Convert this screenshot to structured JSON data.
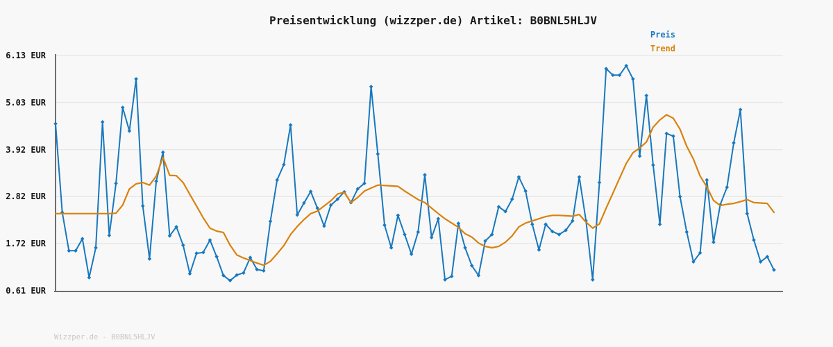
{
  "title": "Preisentwicklung (wizzper.de) Artikel: B0BNL5HLJV",
  "footer": "Wizzper.de - B0BNL5HLJV",
  "legend": {
    "position": "top-right",
    "items": [
      {
        "label": "Preis",
        "color": "#1878be"
      },
      {
        "label": "Trend",
        "color": "#d9820f"
      }
    ]
  },
  "yaxis": {
    "ticks": [
      {
        "value": 6.13,
        "label": "6.13 EUR"
      },
      {
        "value": 5.03,
        "label": "5.03 EUR"
      },
      {
        "value": 3.92,
        "label": "3.92 EUR"
      },
      {
        "value": 2.82,
        "label": "2.82 EUR"
      },
      {
        "value": 1.72,
        "label": "1.72 EUR"
      },
      {
        "value": 0.61,
        "label": "0.61 EUR"
      }
    ]
  },
  "colors": {
    "background": "#f8f8f8",
    "grid": "#e7e7e7",
    "axis": "#6e6e6e",
    "title_text": "#1a1a1a",
    "tick_text": "#141414",
    "watermark_text": "#c8c8c8"
  },
  "chart_data": {
    "type": "line",
    "title": "Preisentwicklung (wizzper.de) Artikel: B0BNL5HLJV",
    "xlabel": "",
    "ylabel": "EUR",
    "ylim": [
      0.61,
      6.13
    ],
    "ytick_labels": [
      "6.13 EUR",
      "5.03 EUR",
      "3.92 EUR",
      "2.82 EUR",
      "1.72 EUR",
      "0.61 EUR"
    ],
    "x_tick_labels_visible": false,
    "grid": "horizontal",
    "legend_position": "top-right",
    "series": [
      {
        "name": "Preis",
        "color": "#1878be",
        "marker": "diamond",
        "values": [
          4.53,
          2.45,
          1.55,
          1.55,
          1.83,
          0.92,
          1.62,
          4.57,
          1.91,
          3.13,
          4.91,
          4.36,
          5.58,
          2.6,
          1.36,
          3.18,
          3.86,
          1.9,
          2.11,
          1.68,
          1.01,
          1.49,
          1.51,
          1.8,
          1.41,
          0.97,
          0.85,
          0.98,
          1.03,
          1.39,
          1.11,
          1.08,
          2.24,
          3.21,
          3.57,
          4.5,
          2.39,
          2.67,
          2.94,
          2.55,
          2.13,
          2.62,
          2.76,
          2.93,
          2.68,
          3.0,
          3.13,
          5.4,
          3.82,
          2.15,
          1.62,
          2.38,
          1.93,
          1.47,
          1.99,
          3.33,
          1.86,
          2.3,
          0.87,
          0.95,
          2.19,
          1.62,
          1.2,
          0.97,
          1.78,
          1.93,
          2.58,
          2.47,
          2.76,
          3.28,
          2.95,
          2.17,
          1.57,
          2.17,
          2.0,
          1.93,
          2.03,
          2.25,
          3.28,
          2.25,
          0.87,
          3.15,
          5.82,
          5.67,
          5.67,
          5.89,
          5.58,
          3.77,
          5.19,
          3.56,
          2.17,
          4.3,
          4.24,
          2.82,
          1.99,
          1.29,
          1.5,
          3.21,
          1.75,
          2.63,
          3.04,
          4.08,
          4.86,
          2.42,
          1.8,
          1.29,
          1.41,
          1.1
        ]
      },
      {
        "name": "Trend",
        "color": "#d9820f",
        "marker": "none",
        "values": [
          2.42,
          2.42,
          2.42,
          2.42,
          2.42,
          2.42,
          2.42,
          2.42,
          2.42,
          2.43,
          2.62,
          3.0,
          3.12,
          3.15,
          3.09,
          3.3,
          3.74,
          3.32,
          3.31,
          3.15,
          2.87,
          2.6,
          2.32,
          2.08,
          2.01,
          1.98,
          1.68,
          1.45,
          1.38,
          1.32,
          1.26,
          1.21,
          1.3,
          1.48,
          1.67,
          1.93,
          2.12,
          2.28,
          2.42,
          2.48,
          2.6,
          2.72,
          2.88,
          2.92,
          2.68,
          2.8,
          2.95,
          3.02,
          3.09,
          3.08,
          3.07,
          3.06,
          2.95,
          2.85,
          2.75,
          2.68,
          2.55,
          2.42,
          2.3,
          2.2,
          2.1,
          1.95,
          1.87,
          1.73,
          1.65,
          1.62,
          1.65,
          1.75,
          1.9,
          2.11,
          2.2,
          2.25,
          2.3,
          2.35,
          2.38,
          2.38,
          2.37,
          2.36,
          2.4,
          2.22,
          2.08,
          2.18,
          2.55,
          2.9,
          3.25,
          3.6,
          3.85,
          3.96,
          4.1,
          4.45,
          4.62,
          4.74,
          4.66,
          4.4,
          4.0,
          3.7,
          3.3,
          3.05,
          2.73,
          2.61,
          2.64,
          2.66,
          2.7,
          2.75,
          2.68,
          2.67,
          2.66,
          2.45
        ]
      }
    ]
  }
}
